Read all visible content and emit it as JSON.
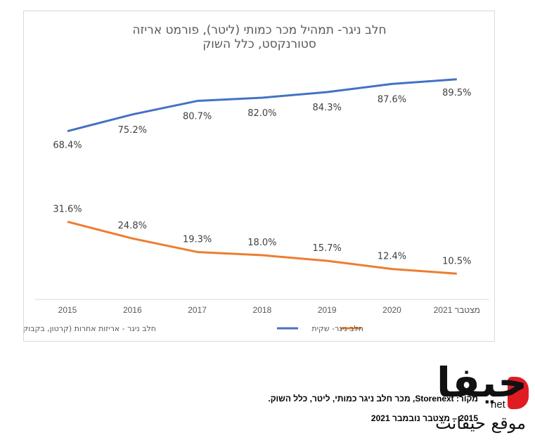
{
  "chart_data": {
    "type": "line",
    "title": [
      "חלב ניגר- תמהיל מכר כמותי (ליטר), פורמט אריזה",
      "סטורנקסט, כלל השוק"
    ],
    "categories": [
      "2015",
      "2016",
      "2017",
      "2018",
      "2019",
      "2020",
      "2021 מצטבר"
    ],
    "series": [
      {
        "name": "חלב ניגר - אריזות אחרות (קרטון, בקבוק, כד)",
        "color": "#4472c4",
        "values": [
          68.4,
          75.2,
          80.7,
          82.0,
          84.3,
          87.6,
          89.5
        ],
        "labels": [
          "68.4%",
          "75.2%",
          "80.7%",
          "82.0%",
          "84.3%",
          "87.6%",
          "89.5%"
        ]
      },
      {
        "name": "חלב ניגר- שקית",
        "color": "#ed7d31",
        "values": [
          31.6,
          24.8,
          19.3,
          18.0,
          15.7,
          12.4,
          10.5
        ],
        "labels": [
          "31.6%",
          "24.8%",
          "19.3%",
          "18.0%",
          "15.7%",
          "12.4%",
          "10.5%"
        ]
      }
    ],
    "legend_position": "bottom",
    "grid": false
  },
  "source": {
    "line1": "מקור: Storenext, מכר חלב ניגר כמותי, ליטר, כלל השוק.",
    "line2": "2015 – מצטבר נובמבר 2021"
  },
  "logo": {
    "main": "حيفا",
    "net": "net",
    "sub": "موقع حيفانت",
    "accent_color": "#e01b22"
  }
}
